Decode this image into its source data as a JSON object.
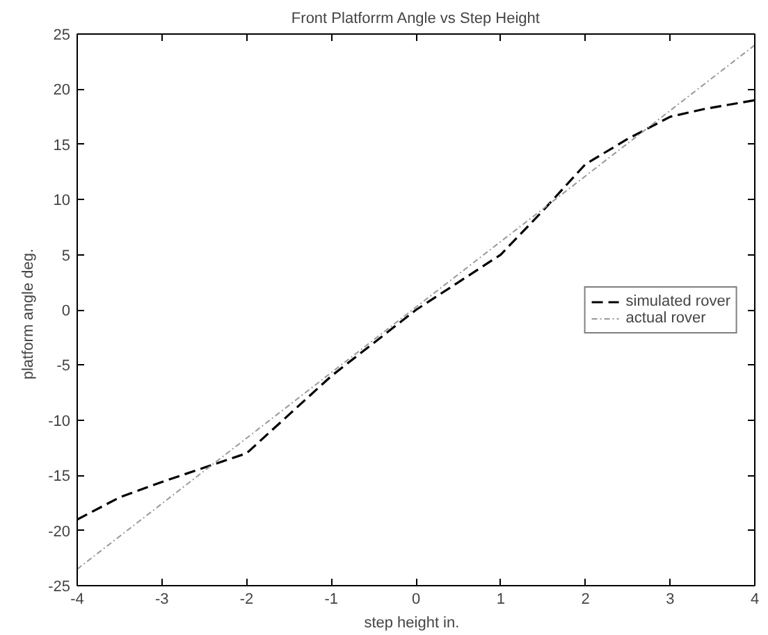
{
  "chart_data": {
    "type": "line",
    "title": "Front Platforrm Angle vs Step Height",
    "xlabel": "step height   in.",
    "ylabel": "platform angle   deg.",
    "xlim": [
      -4,
      4
    ],
    "ylim": [
      -25,
      25
    ],
    "xticks": [
      -4,
      -3,
      -2,
      -1,
      0,
      1,
      2,
      3,
      4
    ],
    "yticks": [
      -25,
      -20,
      -15,
      -10,
      -5,
      0,
      5,
      10,
      15,
      20,
      25
    ],
    "grid": false,
    "legend": "right",
    "line_style": "dashed",
    "series": [
      {
        "name": "simulated rover",
        "color": "#000000",
        "x": [
          -4,
          -3.5,
          -3,
          -2.5,
          -2,
          -1.5,
          -1,
          -0.5,
          0,
          0.5,
          1,
          1.5,
          2,
          2.5,
          3,
          3.4,
          4
        ],
        "values": [
          -19,
          -17,
          -15.6,
          -14.3,
          -13,
          -9.5,
          -6,
          -3,
          0,
          2.5,
          5,
          9,
          13.2,
          15.5,
          17.5,
          18.2,
          19
        ]
      },
      {
        "name": "actual rover",
        "color": "#999999",
        "x": [
          -4,
          4
        ],
        "values": [
          -23.5,
          24
        ]
      }
    ]
  }
}
